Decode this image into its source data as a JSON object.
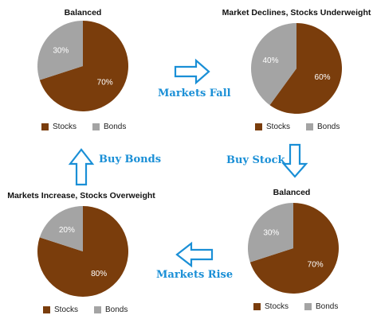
{
  "colors": {
    "stocks": "#7a3d0c",
    "bonds": "#a4a4a4",
    "arrow": "#1a8fd6"
  },
  "legend": {
    "stocks": "Stocks",
    "bonds": "Bonds"
  },
  "flows": {
    "markets_fall": "Markets Fall",
    "buy_stock": "Buy Stock",
    "markets_rise": "Markets Rise",
    "buy_bonds": "Buy Bonds"
  },
  "chart_data": [
    {
      "type": "pie",
      "title": "Balanced",
      "categories": [
        "Stocks",
        "Bonds"
      ],
      "values": [
        70,
        30
      ],
      "labels": [
        "70%",
        "30%"
      ]
    },
    {
      "type": "pie",
      "title": "Market Declines, Stocks Underweight",
      "categories": [
        "Stocks",
        "Bonds"
      ],
      "values": [
        60,
        40
      ],
      "labels": [
        "60%",
        "40%"
      ]
    },
    {
      "type": "pie",
      "title": "Balanced",
      "categories": [
        "Stocks",
        "Bonds"
      ],
      "values": [
        70,
        30
      ],
      "labels": [
        "70%",
        "30%"
      ]
    },
    {
      "type": "pie",
      "title": "Markets Increase, Stocks Overweight",
      "categories": [
        "Stocks",
        "Bonds"
      ],
      "values": [
        80,
        20
      ],
      "labels": [
        "80%",
        "20%"
      ]
    }
  ]
}
